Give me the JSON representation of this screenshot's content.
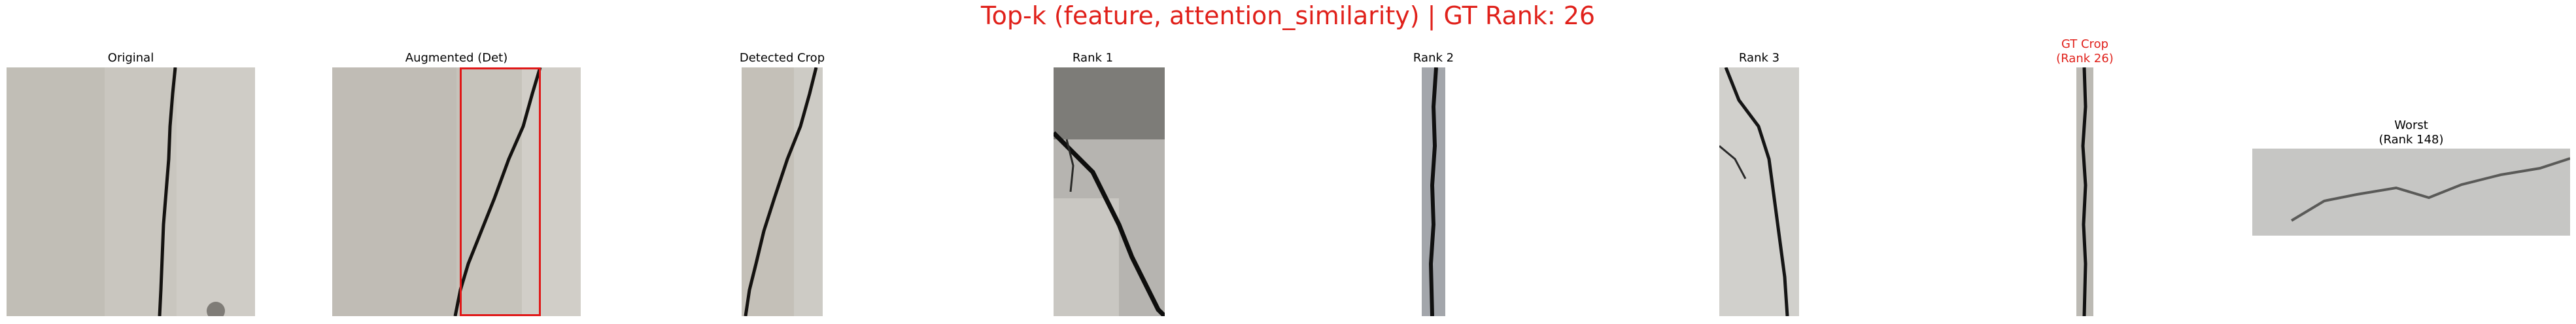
{
  "figure": {
    "title": "Top-k (feature, attention_similarity) | GT Rank: 26",
    "panels": [
      {
        "title": "Original"
      },
      {
        "title": "Augmented (Det)"
      },
      {
        "title": "Detected Crop"
      },
      {
        "title": "Rank 1"
      },
      {
        "title": "Rank 2"
      },
      {
        "title": "Rank 3"
      },
      {
        "title": "GT Crop\n(Rank 26)"
      },
      {
        "title": "Worst\n(Rank 148)"
      }
    ]
  },
  "colors": {
    "title": "#e0201a",
    "gt_label": "#e0201a",
    "detection_box": "#e01818"
  }
}
